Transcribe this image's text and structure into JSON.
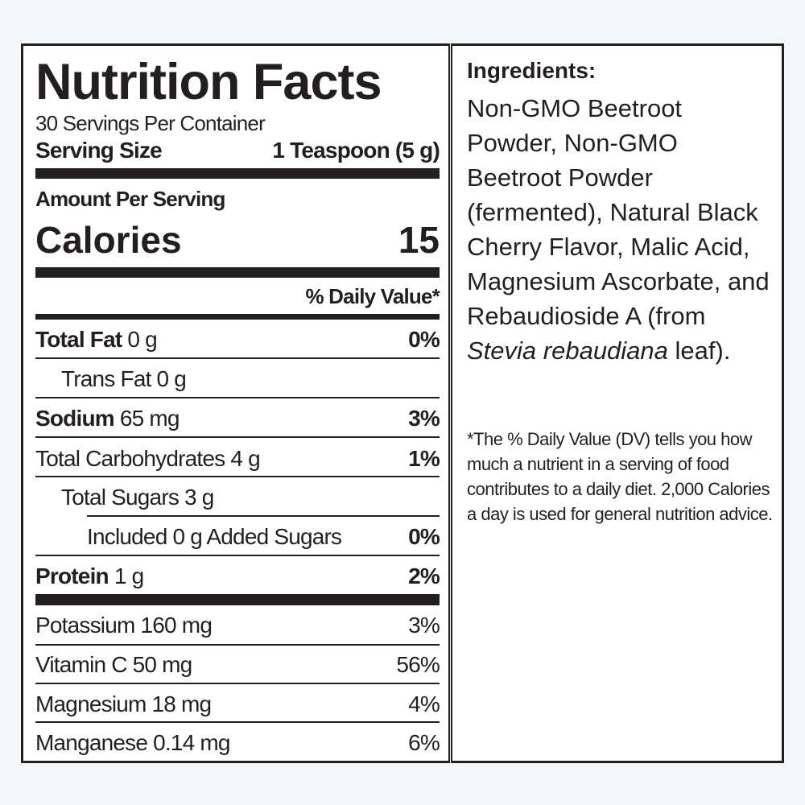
{
  "label": {
    "title": "Nutrition Facts",
    "servings_per_container": "30 Servings Per Container",
    "serving_size_label": "Serving Size",
    "serving_size_value": "1 Teaspoon (5 g)",
    "amount_per_serving": "Amount Per Serving",
    "calories_label": "Calories",
    "calories_value": "15",
    "daily_value_header": "% Daily Value*",
    "nutrients": [
      {
        "name": "Total Fat",
        "amount": " 0 g",
        "dv": "0%"
      },
      {
        "name": "",
        "amount": "Trans Fat 0 g",
        "dv": ""
      },
      {
        "name": "Sodium",
        "amount": " 65 mg",
        "dv": "3%"
      },
      {
        "name": "",
        "amount": "Total Carbohydrates 4 g",
        "dv": "1%"
      },
      {
        "name": "",
        "amount": "Total Sugars 3 g",
        "dv": ""
      },
      {
        "name": "",
        "amount": "Included 0 g Added Sugars",
        "dv": "0%"
      },
      {
        "name": "Protein",
        "amount": " 1 g",
        "dv": "2%"
      }
    ],
    "vitamins": [
      {
        "amount": "Potassium 160 mg",
        "dv": "3%"
      },
      {
        "amount": "Vitamin C 50 mg",
        "dv": "56%"
      },
      {
        "amount": "Magnesium 18 mg",
        "dv": "4%"
      },
      {
        "amount": "Manganese 0.14 mg",
        "dv": "6%"
      }
    ]
  },
  "ingredients": {
    "heading": "Ingredients:",
    "text_before_italic": "Non-GMO Beetroot Powder, Non-GMO Beetroot Powder (fermented), Natural Black Cherry Flavor, Malic Acid, Magnesium Ascorbate, and Rebaudioside A (from ",
    "italic": "Stevia rebaudiana",
    "text_after_italic": " leaf)."
  },
  "footnote": "*The % Daily Value (DV) tells you how much a nutrient in a serving of food contributes to a daily diet. 2,000 Calories a day is used for general nutrition advice.",
  "colors": {
    "ink": "#231f20",
    "background": "#f5f6f8"
  }
}
